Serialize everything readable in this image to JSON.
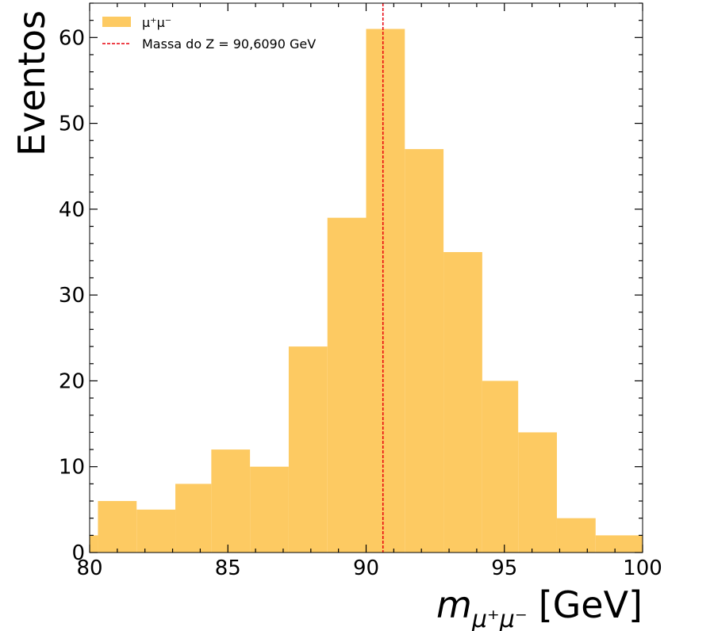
{
  "chart_data": {
    "type": "bar",
    "xlabel_main": "m",
    "xlabel_sub": "μ⁺μ⁻",
    "xlabel_unit": "[GeV]",
    "ylabel": "Eventos",
    "xlim": [
      80,
      100
    ],
    "ylim": [
      0,
      64
    ],
    "x_ticks": [
      "80",
      "85",
      "90",
      "95",
      "100"
    ],
    "y_ticks": [
      "0",
      "10",
      "20",
      "30",
      "40",
      "50",
      "60"
    ],
    "legend_position": "top-left",
    "grid": false,
    "series": [
      {
        "name": "μ⁺μ⁻",
        "color": "#fdca62",
        "bins": [
          {
            "x0": 80.0,
            "x1": 80.3,
            "value": 2
          },
          {
            "x0": 80.3,
            "x1": 81.7,
            "value": 6
          },
          {
            "x0": 81.7,
            "x1": 83.1,
            "value": 5
          },
          {
            "x0": 83.1,
            "x1": 84.4,
            "value": 8
          },
          {
            "x0": 84.4,
            "x1": 85.8,
            "value": 12
          },
          {
            "x0": 85.8,
            "x1": 87.2,
            "value": 10
          },
          {
            "x0": 87.2,
            "x1": 88.6,
            "value": 24
          },
          {
            "x0": 88.6,
            "x1": 90.0,
            "value": 39
          },
          {
            "x0": 90.0,
            "x1": 91.4,
            "value": 61
          },
          {
            "x0": 91.4,
            "x1": 92.8,
            "value": 47
          },
          {
            "x0": 92.8,
            "x1": 94.2,
            "value": 35
          },
          {
            "x0": 94.2,
            "x1": 95.5,
            "value": 20
          },
          {
            "x0": 95.5,
            "x1": 96.9,
            "value": 14
          },
          {
            "x0": 96.9,
            "x1": 98.3,
            "value": 4
          },
          {
            "x0": 98.3,
            "x1": 100.0,
            "value": 2
          }
        ]
      }
    ],
    "reference_line": {
      "x": 90.609,
      "label": "Massa do Z = 90,6090 GeV",
      "color": "#e8000b"
    }
  }
}
